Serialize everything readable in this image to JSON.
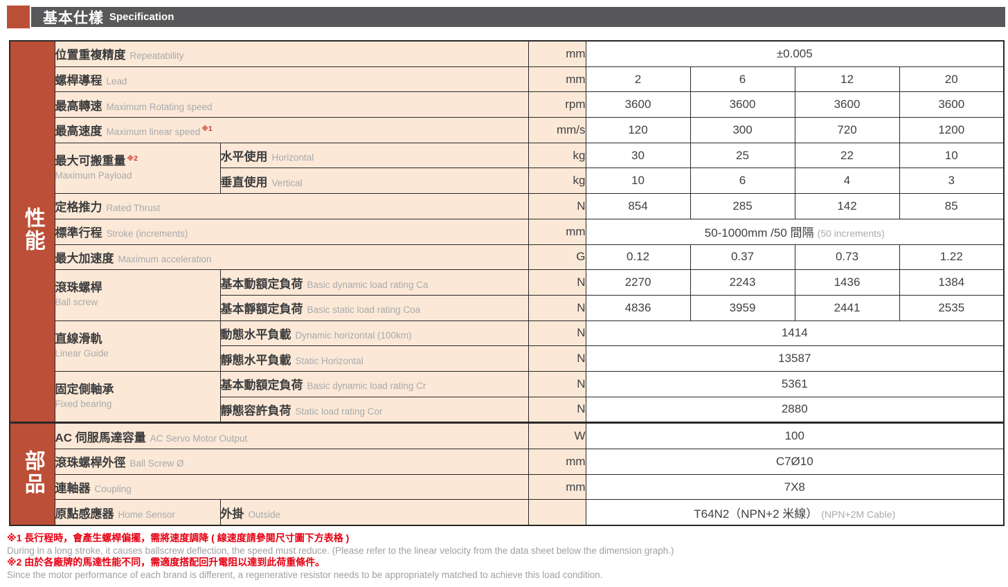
{
  "header": {
    "title_zh": "基本仕樣",
    "title_en": "Specification"
  },
  "colors": {
    "accent_red": "#bc4f37",
    "header_bar_gray": "#58585a",
    "label_bg_peach": "#fbe8d6",
    "border_black": "#2b2728",
    "footnote_red": "#e60012",
    "muted_gray": "#a8aaad",
    "dark_text": "#404042"
  },
  "table": {
    "sections": [
      {
        "id": "performance",
        "side_label": "性能",
        "thick_top": false,
        "rows": [
          {
            "label": {
              "zh": "位置重複精度",
              "en": "Repeatability",
              "colspan": 2
            },
            "unit": "mm",
            "values": {
              "span": true,
              "text": "±0.005",
              "gray": ""
            }
          },
          {
            "label": {
              "zh": "螺桿導程",
              "en": "Lead",
              "colspan": 2
            },
            "unit": "mm",
            "values": {
              "span": false,
              "cells": [
                "2",
                "6",
                "12",
                "20"
              ]
            }
          },
          {
            "label": {
              "zh": "最高轉速",
              "en": "Maximum Rotating speed",
              "colspan": 2
            },
            "unit": "rpm",
            "values": {
              "span": false,
              "cells": [
                "3600",
                "3600",
                "3600",
                "3600"
              ]
            }
          },
          {
            "label": {
              "zh": "最高速度",
              "en": "Maximum linear speed",
              "sup": "※1",
              "sup_after": "en",
              "colspan": 2
            },
            "unit": "mm/s",
            "values": {
              "span": false,
              "cells": [
                "120",
                "300",
                "720",
                "1200"
              ]
            }
          },
          {
            "label": {
              "zh": "最大可搬重量",
              "en": "Maximum Payload",
              "sup": "※2",
              "sup_after": "zh",
              "stacked": true,
              "rowspan": 2,
              "colspan": 1
            },
            "sub": {
              "zh": "水平使用",
              "en": "Horizontal"
            },
            "unit": "kg",
            "values": {
              "span": false,
              "cells": [
                "30",
                "25",
                "22",
                "10"
              ]
            }
          },
          {
            "label": null,
            "sub": {
              "zh": "垂直使用",
              "en": "Vertical"
            },
            "unit": "kg",
            "values": {
              "span": false,
              "cells": [
                "10",
                "6",
                "4",
                "3"
              ]
            }
          },
          {
            "label": {
              "zh": "定格推力",
              "en": "Rated Thrust",
              "colspan": 2
            },
            "unit": "N",
            "values": {
              "span": false,
              "cells": [
                "854",
                "285",
                "142",
                "85"
              ]
            }
          },
          {
            "label": {
              "zh": "標準行程",
              "en": "Stroke (increments)",
              "colspan": 2
            },
            "unit": "mm",
            "values": {
              "span": true,
              "text": "50-1000mm /50 間隔",
              "gray": "(50 increments)"
            }
          },
          {
            "label": {
              "zh": "最大加速度",
              "en": "Maximum acceleration",
              "colspan": 2
            },
            "unit": "G",
            "values": {
              "span": false,
              "cells": [
                "0.12",
                "0.37",
                "0.73",
                "1.22"
              ]
            }
          },
          {
            "label": {
              "zh": "滾珠螺桿",
              "en": "Ball screw",
              "stacked": true,
              "rowspan": 2,
              "colspan": 1
            },
            "sub": {
              "zh": "基本動額定負荷",
              "en": "Basic dynamic load rating Ca"
            },
            "unit": "N",
            "values": {
              "span": false,
              "cells": [
                "2270",
                "2243",
                "1436",
                "1384"
              ]
            }
          },
          {
            "label": null,
            "sub": {
              "zh": "基本靜額定負荷",
              "en": "Basic static load rating Coa"
            },
            "unit": "N",
            "values": {
              "span": false,
              "cells": [
                "4836",
                "3959",
                "2441",
                "2535"
              ]
            }
          },
          {
            "label": {
              "zh": "直線滑軌",
              "en": "Linear Guide",
              "stacked": true,
              "rowspan": 2,
              "colspan": 1
            },
            "sub": {
              "zh": "動態水平負載",
              "en": "Dynamic horizontal (100km)"
            },
            "unit": "N",
            "values": {
              "span": true,
              "text": "1414",
              "gray": ""
            }
          },
          {
            "label": null,
            "sub": {
              "zh": "靜態水平負載",
              "en": "Static Horizontal"
            },
            "unit": "N",
            "values": {
              "span": true,
              "text": "13587",
              "gray": ""
            }
          },
          {
            "label": {
              "zh": "固定側軸承",
              "en": "Fixed bearing",
              "stacked": true,
              "rowspan": 2,
              "colspan": 1
            },
            "sub": {
              "zh": "基本動額定負荷",
              "en": "Basic dynamic load rating Cr"
            },
            "unit": "N",
            "values": {
              "span": true,
              "text": "5361",
              "gray": ""
            }
          },
          {
            "label": null,
            "sub": {
              "zh": "靜態容許負荷",
              "en": "Static load rating Cor"
            },
            "unit": "N",
            "values": {
              "span": true,
              "text": "2880",
              "gray": ""
            }
          }
        ]
      },
      {
        "id": "parts",
        "side_label": "部品",
        "thick_top": true,
        "rows": [
          {
            "label": {
              "zh": "AC 伺服馬達容量",
              "en": "AC Servo Motor Output",
              "colspan": 2
            },
            "unit": "W",
            "values": {
              "span": true,
              "text": "100",
              "gray": ""
            }
          },
          {
            "label": {
              "zh": "滾珠螺桿外徑",
              "en": "Ball Screw Ø",
              "colspan": 2
            },
            "unit": "mm",
            "values": {
              "span": true,
              "text": "C7Ø10",
              "gray": ""
            }
          },
          {
            "label": {
              "zh": "連軸器",
              "en": "Coupling",
              "colspan": 2
            },
            "unit": "mm",
            "values": {
              "span": true,
              "text": "7X8",
              "gray": ""
            }
          },
          {
            "label": {
              "zh": "原點感應器",
              "en": "Home Sensor",
              "colspan": 1
            },
            "sub": {
              "zh": "外掛",
              "en": "Outside"
            },
            "unit": "",
            "values": {
              "span": true,
              "text": "T64N2（NPN+2 米線）",
              "gray": "(NPN+2M Cable)"
            }
          }
        ]
      }
    ]
  },
  "footnotes": [
    {
      "zh": "※1 長行程時，會產生螺桿偏擺，需將速度調降 ( 線速度請參閱尺寸圖下方表格 )",
      "en": "During in a long stroke, it causes ballscrew deflection, the speed must reduce. (Please refer to the linear velocity from the data sheet below the dimension graph.)"
    },
    {
      "zh": "※2 由於各廠牌的馬達性能不同，需適度搭配回升電阻以達到此荷重條件。",
      "en": "Since the motor performance of each brand is different, a regenerative resistor needs to be appropriately matched to achieve this load condition."
    }
  ]
}
